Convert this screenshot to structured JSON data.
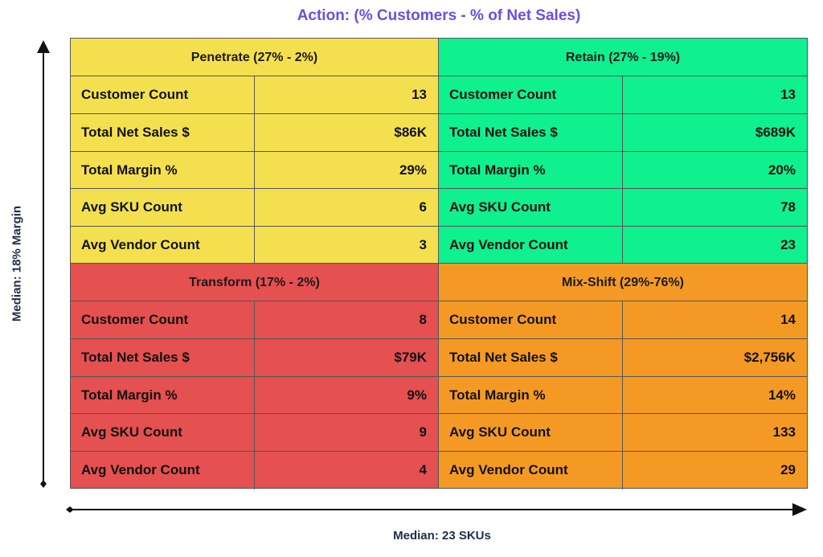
{
  "title": "Action: (% Customers - % of Net Sales)",
  "y_axis_label": "Median: 18% Margin",
  "x_axis_label": "Median: 23 SKUs",
  "colors": {
    "title": "#6c4ee0",
    "axis_label": "#1f2d44",
    "axis_line": "#111111",
    "penetrate": "#f4e04f",
    "retain": "#0ff08f",
    "transform": "#e55050",
    "mix_shift": "#f49a24"
  },
  "quadrants": {
    "penetrate": {
      "title": "Penetrate (27% - 2%)",
      "rows": [
        {
          "label": "Customer Count",
          "value": "13"
        },
        {
          "label": "Total Net Sales $",
          "value": "$86K"
        },
        {
          "label": "Total Margin %",
          "value": "29%"
        },
        {
          "label": "Avg SKU Count",
          "value": "6"
        },
        {
          "label": "Avg Vendor Count",
          "value": "3"
        }
      ]
    },
    "retain": {
      "title": "Retain (27% - 19%)",
      "rows": [
        {
          "label": "Customer Count",
          "value": "13"
        },
        {
          "label": "Total Net Sales $",
          "value": "$689K"
        },
        {
          "label": "Total Margin %",
          "value": "20%"
        },
        {
          "label": "Avg SKU Count",
          "value": "78"
        },
        {
          "label": "Avg Vendor Count",
          "value": "23"
        }
      ]
    },
    "transform": {
      "title": "Transform (17% - 2%)",
      "rows": [
        {
          "label": "Customer Count",
          "value": "8"
        },
        {
          "label": "Total Net Sales $",
          "value": "$79K"
        },
        {
          "label": "Total Margin %",
          "value": "9%"
        },
        {
          "label": "Avg SKU Count",
          "value": "9"
        },
        {
          "label": "Avg Vendor Count",
          "value": "4"
        }
      ]
    },
    "mix_shift": {
      "title": "Mix-Shift (29%-76%)",
      "rows": [
        {
          "label": "Customer Count",
          "value": "14"
        },
        {
          "label": "Total Net Sales $",
          "value": "$2,756K"
        },
        {
          "label": "Total Margin %",
          "value": "14%"
        },
        {
          "label": "Avg SKU Count",
          "value": "133"
        },
        {
          "label": "Avg Vendor Count",
          "value": "29"
        }
      ]
    }
  }
}
